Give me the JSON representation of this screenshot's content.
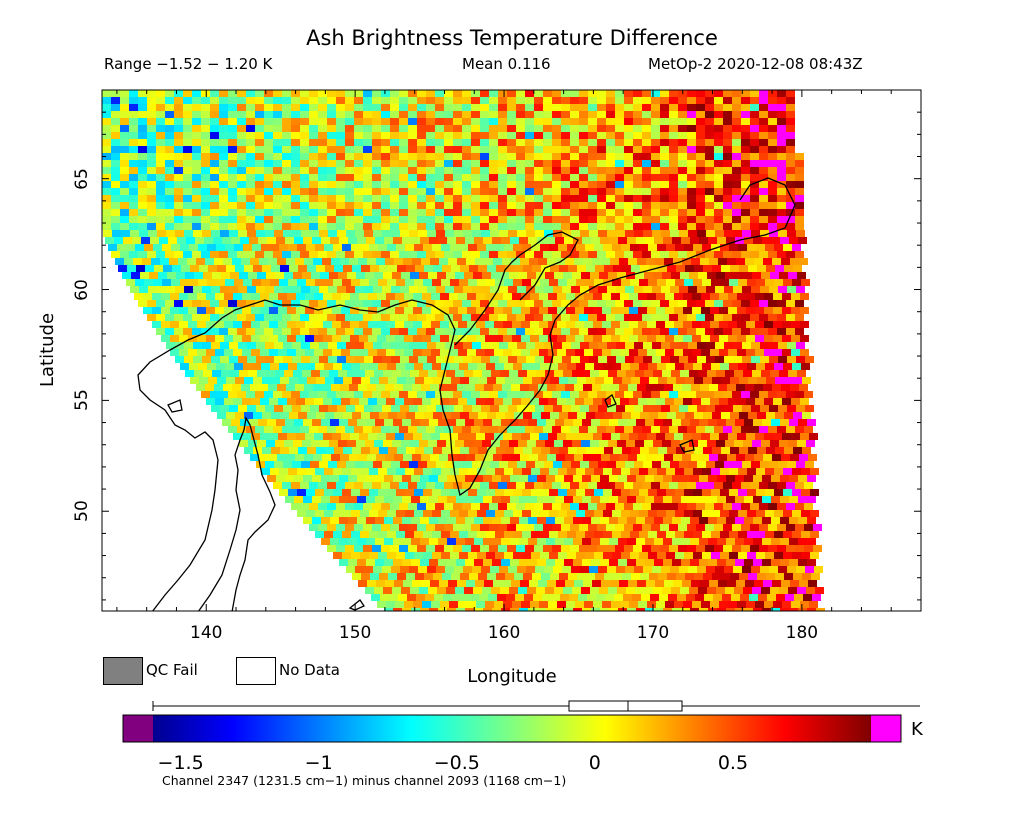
{
  "chart_data": {
    "type": "heatmap",
    "title": "Ash Brightness Temperature Difference",
    "subtitle_range": "Range −1.52 − 1.20 K",
    "subtitle_mean": "Mean 0.116",
    "subtitle_satellite": "MetOp-2 2020-12-08 08:43Z",
    "xlabel": "Longitude",
    "ylabel": "Latitude",
    "xlim": [
      133,
      188
    ],
    "ylim": [
      45.5,
      69
    ],
    "x_ticks": [
      "140",
      "150",
      "160",
      "170",
      "180"
    ],
    "y_ticks": [
      "50",
      "55",
      "60",
      "65"
    ],
    "legend": [
      {
        "label": "QC Fail",
        "color": "#808080"
      },
      {
        "label": "No Data",
        "color": "#ffffff"
      }
    ],
    "colorbar": {
      "vmin": -1.6,
      "vmax": 1.0,
      "ticks": [
        "−1.5",
        "−1",
        "−0.5",
        "0",
        "0.5"
      ],
      "tick_values": [
        -1.5,
        -1.0,
        -0.5,
        0.0,
        0.5
      ],
      "unit": "K",
      "underflow_color": "#800080",
      "overflow_color": "#ff00ff",
      "caption": "Channel 2347 (1231.5 cm−1) minus channel 2093 (1168 cm−1)",
      "boxplot": {
        "whisker_low": -1.52,
        "q1": -0.07,
        "median": 0.116,
        "q3": 0.3,
        "whisker_high": 1.2
      }
    },
    "field_description_values": {
      "mean": 0.116,
      "min": -1.52,
      "max": 1.2
    }
  }
}
